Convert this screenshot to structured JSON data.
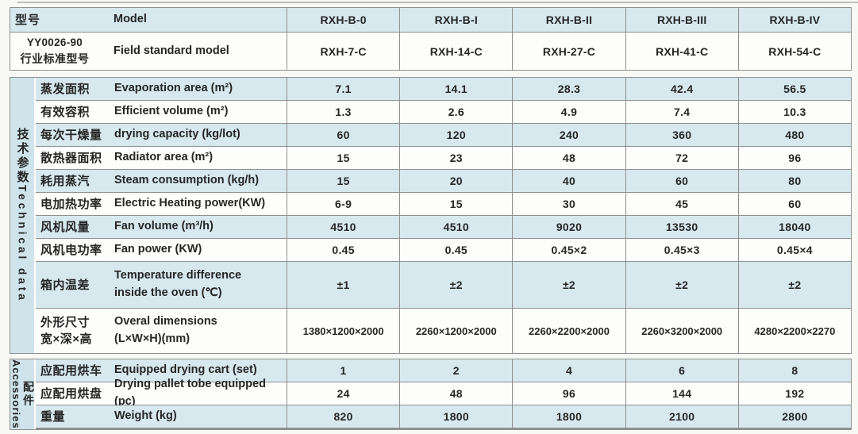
{
  "header": {
    "model": {
      "zh": "型号",
      "en": "Model",
      "values": [
        "RXH-B-0",
        "RXH-B-I",
        "RXH-B-II",
        "RXH-B-III",
        "RXH-B-IV"
      ]
    },
    "standard": {
      "code": "YY0026-90",
      "zh": "行业标准型号",
      "en": "Field standard model",
      "values": [
        "RXH-7-C",
        "RXH-14-C",
        "RXH-27-C",
        "RXH-41-C",
        "RXH-54-C"
      ]
    }
  },
  "tech": {
    "sidebar_zh": "技术参数",
    "sidebar_en": "Technical data",
    "rows": [
      {
        "zh": "蒸发面积",
        "en": "Evaporation area (m²)",
        "values": [
          "7.1",
          "14.1",
          "28.3",
          "42.4",
          "56.5"
        ]
      },
      {
        "zh": "有效容积",
        "en": "Efficient volume (m²)",
        "values": [
          "1.3",
          "2.6",
          "4.9",
          "7.4",
          "10.3"
        ]
      },
      {
        "zh": "每次干燥量",
        "en": "drying capacity (kg/lot)",
        "values": [
          "60",
          "120",
          "240",
          "360",
          "480"
        ]
      },
      {
        "zh": "散热器面积",
        "en": "Radiator area (m²)",
        "values": [
          "15",
          "23",
          "48",
          "72",
          "96"
        ]
      },
      {
        "zh": "耗用蒸汽",
        "en": "Steam consumption (kg/h)",
        "values": [
          "15",
          "20",
          "40",
          "60",
          "80"
        ]
      },
      {
        "zh": "电加热功率",
        "en": "Electric Heating power(KW)",
        "values": [
          "6-9",
          "15",
          "30",
          "45",
          "60"
        ]
      },
      {
        "zh": "风机风量",
        "en": "Fan volume (m³/h)",
        "values": [
          "4510",
          "4510",
          "9020",
          "13530",
          "18040"
        ]
      },
      {
        "zh": "风机电功率",
        "en": "Fan power (KW)",
        "values": [
          "0.45",
          "0.45",
          "0.45×2",
          "0.45×3",
          "0.45×4"
        ]
      },
      {
        "zh": "箱内温差",
        "en": "Temperature difference\ninside the oven (℃)",
        "values": [
          "±1",
          "±2",
          "±2",
          "±2",
          "±2"
        ]
      },
      {
        "zh": "外形尺寸\n宽×深×高",
        "en": "Overal dimensions\n(L×W×H)(mm)",
        "values": [
          "1380×1200×2000",
          "2260×1200×2000",
          "2260×2200×2000",
          "2260×3200×2000",
          "4280×2200×2270"
        ]
      }
    ]
  },
  "acc": {
    "sidebar_zh": "配件",
    "sidebar_en": "Accessories",
    "rows": [
      {
        "zh": "应配用烘车",
        "en": "Equipped drying cart (set)",
        "values": [
          "1",
          "2",
          "4",
          "6",
          "8"
        ]
      },
      {
        "zh": "应配用烘盘",
        "en": "Drying pallet tobe equipped (pc)",
        "values": [
          "24",
          "48",
          "96",
          "144",
          "192"
        ]
      },
      {
        "zh": "重量",
        "en": "Weight (kg)",
        "values": [
          "820",
          "1800",
          "1800",
          "2100",
          "2800"
        ]
      }
    ]
  },
  "colors": {
    "row_blue": "#d7e8ee",
    "row_white": "#fdfdfb",
    "sidebar_blue": "#cfe3ea",
    "border_gray": "#8f8f8f",
    "text": "#262626"
  }
}
